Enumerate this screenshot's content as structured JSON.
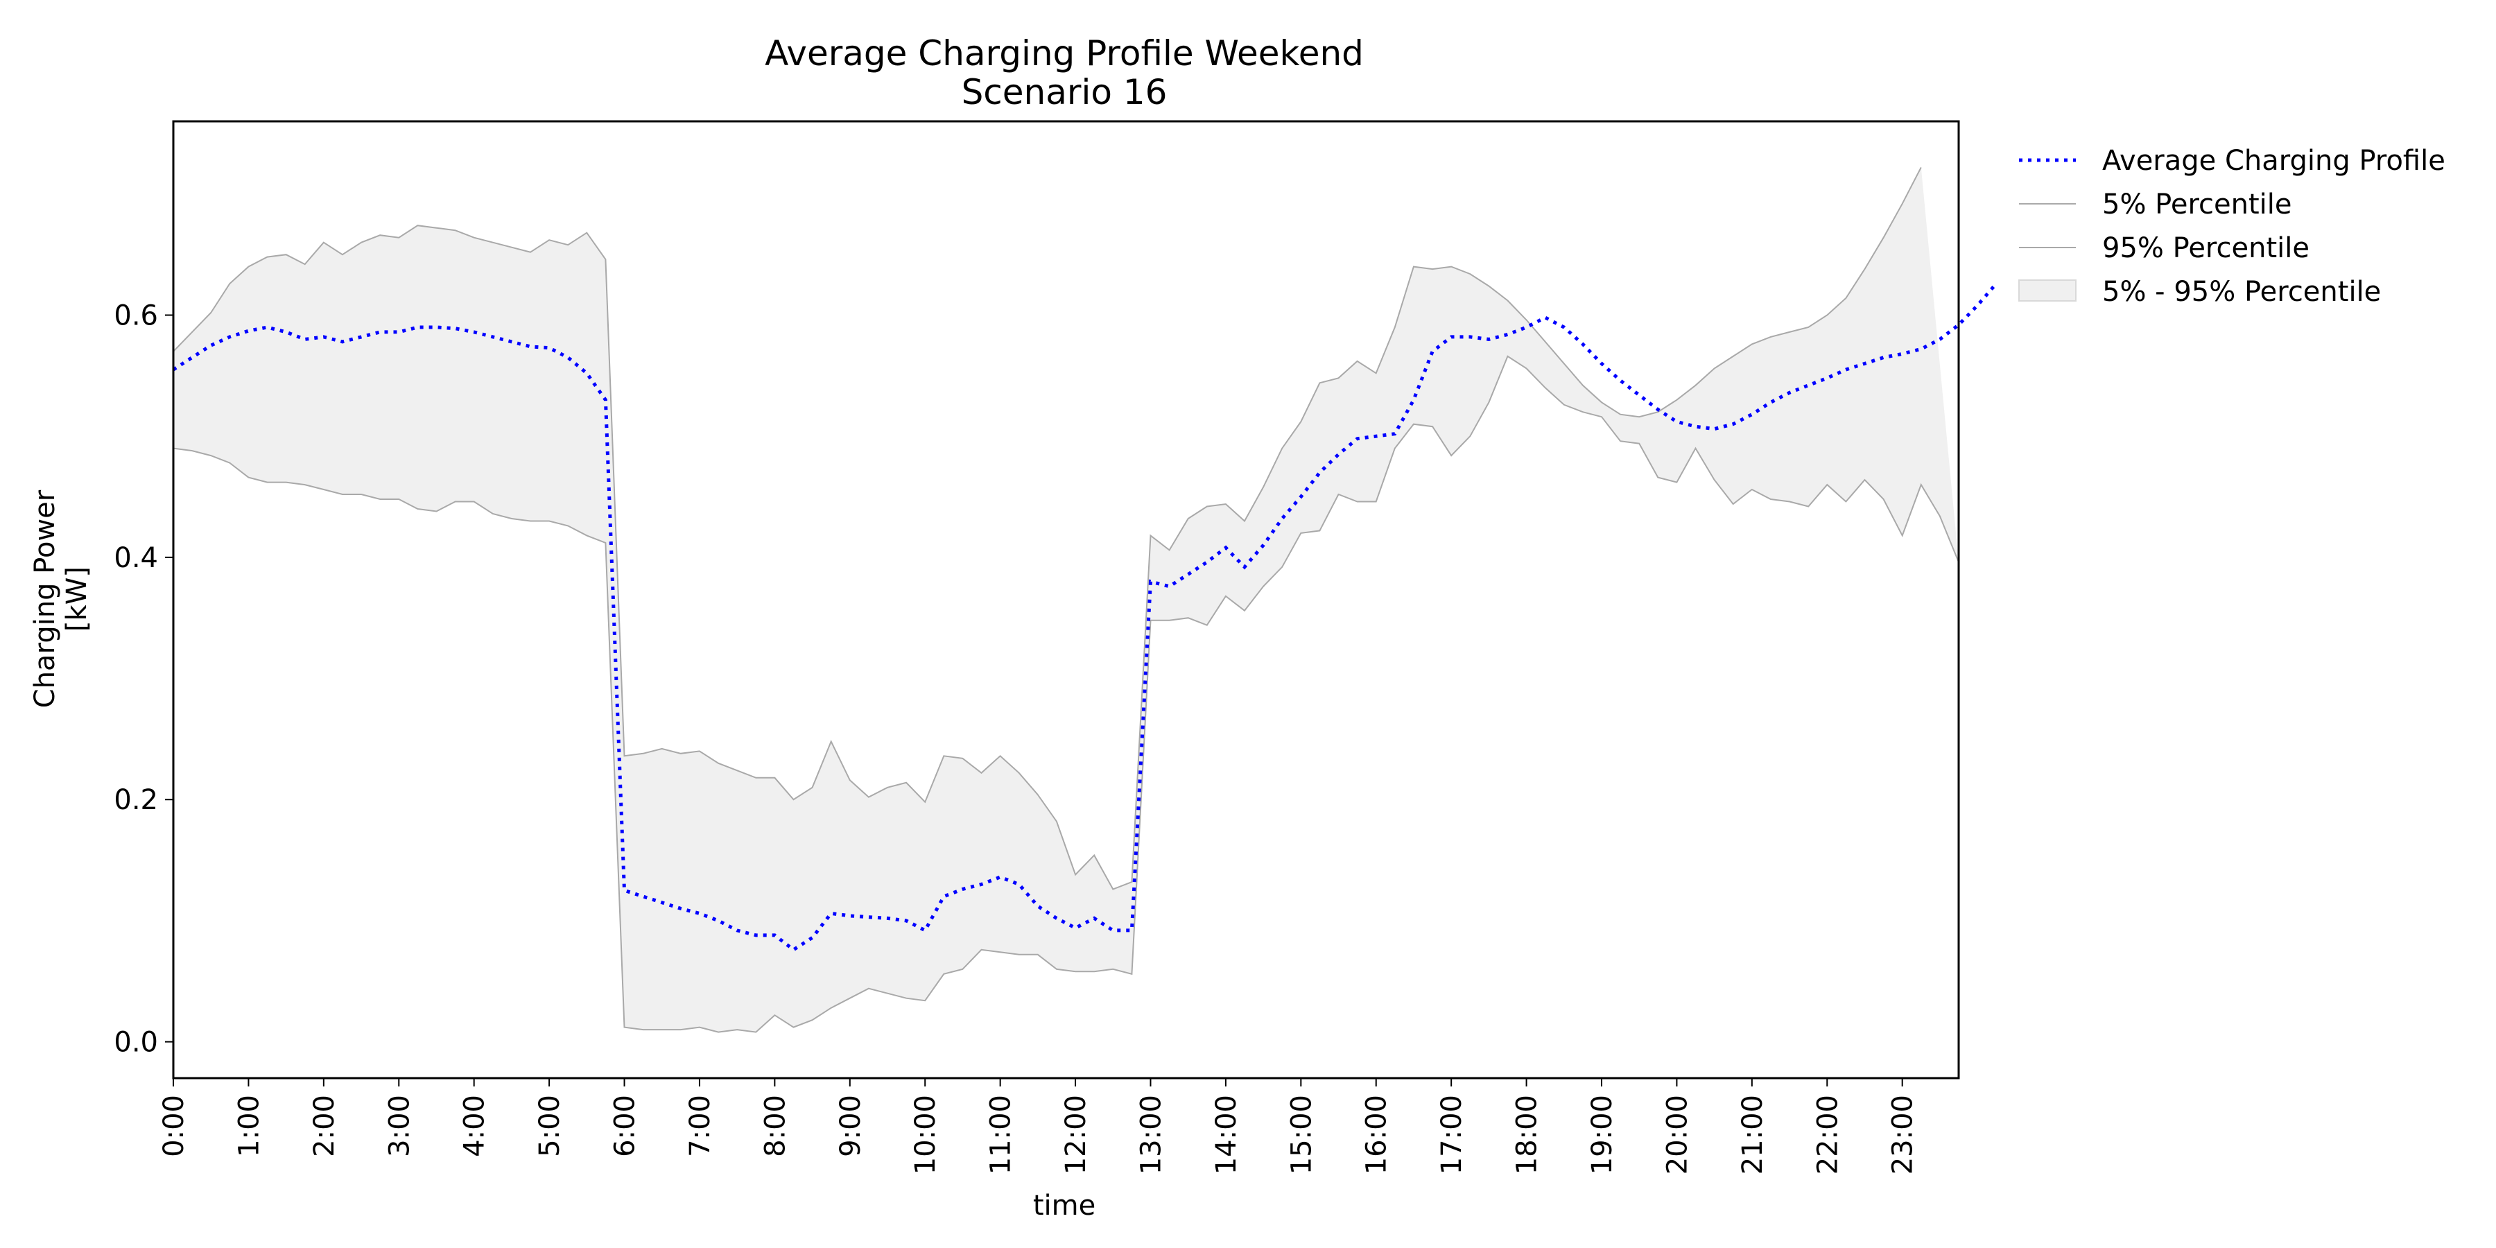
{
  "chart_data": {
    "type": "line",
    "title": "Average Charging Profile Weekend",
    "subtitle": "Scenario 16",
    "xlabel": "time",
    "ylabel": "Charging Power",
    "ylabel_unit": "[kW]",
    "x_step_minutes": 15,
    "xlim": [
      0,
      95
    ],
    "ylim": [
      -0.03,
      0.76
    ],
    "x_tick_labels": [
      "0:00",
      "1:00",
      "2:00",
      "3:00",
      "4:00",
      "5:00",
      "6:00",
      "7:00",
      "8:00",
      "9:00",
      "10:00",
      "11:00",
      "12:00",
      "13:00",
      "14:00",
      "15:00",
      "16:00",
      "17:00",
      "18:00",
      "19:00",
      "20:00",
      "21:00",
      "22:00",
      "23:00"
    ],
    "y_ticks": [
      0.0,
      0.2,
      0.4,
      0.6
    ],
    "y_tick_labels": [
      "0.0",
      "0.2",
      "0.4",
      "0.6"
    ],
    "grid": false,
    "legend_position": "outside-top-right",
    "legend": [
      {
        "label": "Average Charging Profile",
        "kind": "dotted-line"
      },
      {
        "label": "5% Percentile",
        "kind": "thin-line"
      },
      {
        "label": "95% Percentile",
        "kind": "thin-line"
      },
      {
        "label": "5% - 95% Percentile",
        "kind": "patch"
      }
    ],
    "colors": {
      "average": "#0000ff",
      "percentile_line": "#a9a9a9",
      "band_fill": "#f0f0f0",
      "band_edge": "#d9d9d9"
    },
    "series": [
      {
        "name": "Average Charging Profile",
        "values": [
          0.555,
          0.565,
          0.575,
          0.582,
          0.587,
          0.59,
          0.586,
          0.58,
          0.582,
          0.578,
          0.582,
          0.586,
          0.586,
          0.59,
          0.59,
          0.589,
          0.586,
          0.582,
          0.578,
          0.574,
          0.573,
          0.565,
          0.552,
          0.53,
          0.125,
          0.12,
          0.115,
          0.11,
          0.106,
          0.1,
          0.092,
          0.088,
          0.088,
          0.076,
          0.086,
          0.106,
          0.104,
          0.103,
          0.102,
          0.1,
          0.092,
          0.12,
          0.126,
          0.13,
          0.136,
          0.13,
          0.112,
          0.102,
          0.094,
          0.102,
          0.092,
          0.092,
          0.38,
          0.376,
          0.386,
          0.396,
          0.408,
          0.392,
          0.41,
          0.432,
          0.45,
          0.47,
          0.485,
          0.498,
          0.5,
          0.502,
          0.53,
          0.57,
          0.582,
          0.582,
          0.58,
          0.584,
          0.59,
          0.598,
          0.59,
          0.576,
          0.56,
          0.546,
          0.534,
          0.522,
          0.512,
          0.508,
          0.506,
          0.51,
          0.518,
          0.528,
          0.536,
          0.542,
          0.548,
          0.555,
          0.56,
          0.565,
          0.568,
          0.572,
          0.58,
          0.592,
          0.608,
          0.626
        ]
      },
      {
        "name": "5% Percentile",
        "values": [
          0.49,
          0.488,
          0.484,
          0.478,
          0.466,
          0.462,
          0.462,
          0.46,
          0.456,
          0.452,
          0.452,
          0.448,
          0.448,
          0.44,
          0.438,
          0.446,
          0.446,
          0.436,
          0.432,
          0.43,
          0.43,
          0.426,
          0.418,
          0.412,
          0.012,
          0.01,
          0.01,
          0.01,
          0.012,
          0.008,
          0.01,
          0.008,
          0.022,
          0.012,
          0.018,
          0.028,
          0.036,
          0.044,
          0.04,
          0.036,
          0.034,
          0.056,
          0.06,
          0.076,
          0.074,
          0.072,
          0.072,
          0.06,
          0.058,
          0.058,
          0.06,
          0.056,
          0.348,
          0.348,
          0.35,
          0.344,
          0.368,
          0.356,
          0.376,
          0.392,
          0.42,
          0.422,
          0.452,
          0.446,
          0.446,
          0.49,
          0.51,
          0.508,
          0.484,
          0.5,
          0.528,
          0.566,
          0.556,
          0.54,
          0.526,
          0.52,
          0.516,
          0.496,
          0.494,
          0.466,
          0.462,
          0.49,
          0.464,
          0.444,
          0.456,
          0.448,
          0.446,
          0.442,
          0.46,
          0.446,
          0.464,
          0.448,
          0.418,
          0.46,
          0.434,
          0.396
        ]
      },
      {
        "name": "95% Percentile",
        "values": [
          0.57,
          0.586,
          0.602,
          0.626,
          0.64,
          0.648,
          0.65,
          0.642,
          0.66,
          0.65,
          0.66,
          0.666,
          0.664,
          0.674,
          0.672,
          0.67,
          0.664,
          0.66,
          0.656,
          0.652,
          0.662,
          0.658,
          0.668,
          0.646,
          0.236,
          0.238,
          0.242,
          0.238,
          0.24,
          0.23,
          0.224,
          0.218,
          0.218,
          0.2,
          0.21,
          0.248,
          0.216,
          0.202,
          0.21,
          0.214,
          0.198,
          0.236,
          0.234,
          0.222,
          0.236,
          0.222,
          0.204,
          0.182,
          0.138,
          0.154,
          0.126,
          0.132,
          0.418,
          0.406,
          0.432,
          0.442,
          0.444,
          0.43,
          0.458,
          0.49,
          0.512,
          0.544,
          0.548,
          0.562,
          0.552,
          0.59,
          0.64,
          0.638,
          0.64,
          0.634,
          0.624,
          0.612,
          0.596,
          0.578,
          0.56,
          0.542,
          0.528,
          0.518,
          0.516,
          0.52,
          0.53,
          0.542,
          0.556,
          0.566,
          0.576,
          0.582,
          0.586,
          0.59,
          0.6,
          0.614,
          0.638,
          0.664,
          0.692,
          0.722
        ]
      }
    ]
  }
}
